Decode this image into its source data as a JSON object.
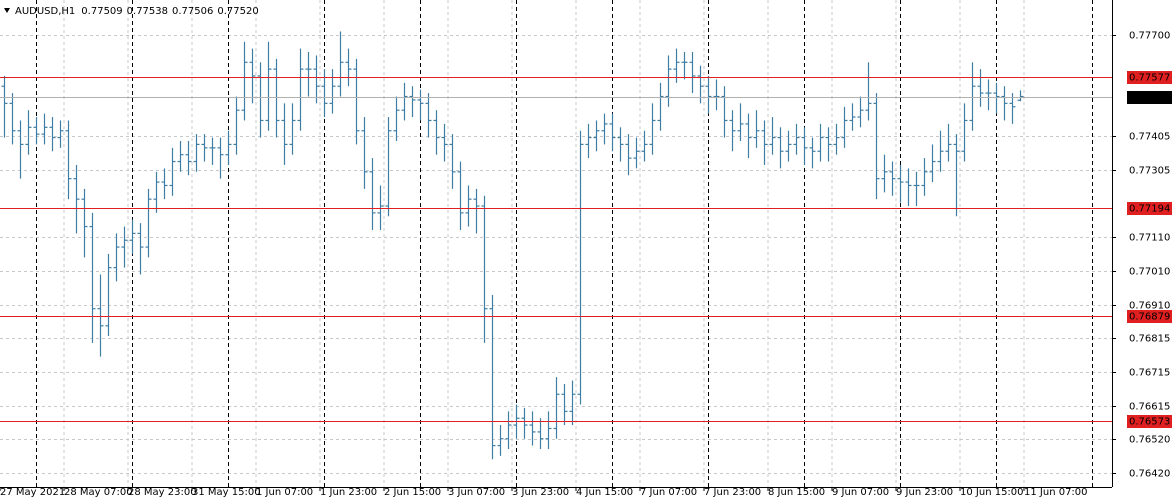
{
  "chart_data": {
    "type": "ohlc",
    "title": "AUDUSD,H1",
    "quote": [
      0.77509,
      0.77538,
      0.77506,
      {
        "value": 0.7752,
        "label": "0.77520"
      }
    ],
    "color": "#3f7ea3",
    "grid": true,
    "ylim": [
      0.76379,
      0.77802
    ],
    "yticks": [
      {
        "value": 0.777,
        "label": "0.77700"
      },
      {
        "value": 0.77405,
        "label": "0.77405"
      },
      {
        "value": 0.77305,
        "label": "0.77305"
      },
      {
        "value": 0.7711,
        "label": "0.77110"
      },
      {
        "value": 0.7701,
        "label": "0.77010"
      },
      {
        "value": 0.7691,
        "label": "0.76910"
      },
      {
        "value": 0.76815,
        "label": "0.76815"
      },
      {
        "value": 0.76715,
        "label": "0.76715"
      },
      {
        "value": 0.76615,
        "label": "0.76615"
      },
      {
        "value": 0.7652,
        "label": "0.76520"
      },
      {
        "value": 0.7642,
        "label": "0.76420"
      }
    ],
    "levels": [
      0.77577,
      0.77194,
      0.76879,
      0.76573
    ],
    "level_color": "#e02020",
    "current_price": {
      "value": 0.7752,
      "label": "0.77520"
    },
    "x_labels": [
      "27 May 2021",
      "28 May 07:00",
      "28 May 23:00",
      "31 May 15:00",
      "1 Jun 07:00",
      "1 Jun 23:00",
      "2 Jun 15:00",
      "3 Jun 07:00",
      "3 Jun 23:00",
      "4 Jun 15:00",
      "7 Jun 07:00",
      "7 Jun 23:00",
      "8 Jun 15:00",
      "9 Jun 07:00",
      "9 Jun 23:00",
      "10 Jun 15:00",
      "11 Jun 07:00"
    ],
    "ohlc": [
      [
        0.7755,
        0.7758,
        0.774,
        0.775
      ],
      [
        0.775,
        0.7753,
        0.7738,
        0.7742
      ],
      [
        0.7742,
        0.7745,
        0.7728,
        0.7738
      ],
      [
        0.7738,
        0.7748,
        0.7735,
        0.7743
      ],
      [
        0.7743,
        0.7746,
        0.7738,
        0.7741
      ],
      [
        0.7741,
        0.7747,
        0.7738,
        0.7743
      ],
      [
        0.7743,
        0.7746,
        0.7736,
        0.774
      ],
      [
        0.774,
        0.7745,
        0.7737,
        0.7742
      ],
      [
        0.7742,
        0.7745,
        0.7722,
        0.7728
      ],
      [
        0.7728,
        0.7732,
        0.7712,
        0.7722
      ],
      [
        0.7722,
        0.7725,
        0.7705,
        0.7714
      ],
      [
        0.7714,
        0.7718,
        0.768,
        0.769
      ],
      [
        0.769,
        0.77,
        0.7676,
        0.7685
      ],
      [
        0.7685,
        0.7706,
        0.7682,
        0.7702
      ],
      [
        0.7702,
        0.7712,
        0.7698,
        0.7708
      ],
      [
        0.7708,
        0.7714,
        0.7702,
        0.771
      ],
      [
        0.771,
        0.7716,
        0.7706,
        0.7712
      ],
      [
        0.7712,
        0.7715,
        0.77,
        0.7708
      ],
      [
        0.7708,
        0.7725,
        0.7705,
        0.7722
      ],
      [
        0.7722,
        0.773,
        0.7718,
        0.7727
      ],
      [
        0.7727,
        0.7731,
        0.7722,
        0.7726
      ],
      [
        0.7726,
        0.7737,
        0.7723,
        0.7733
      ],
      [
        0.7733,
        0.7739,
        0.773,
        0.7735
      ],
      [
        0.7735,
        0.7739,
        0.7729,
        0.7733
      ],
      [
        0.7733,
        0.7741,
        0.773,
        0.7738
      ],
      [
        0.7738,
        0.7741,
        0.7733,
        0.7737
      ],
      [
        0.7737,
        0.774,
        0.7732,
        0.7737
      ],
      [
        0.7737,
        0.774,
        0.7728,
        0.7735
      ],
      [
        0.7735,
        0.7742,
        0.7732,
        0.7738
      ],
      [
        0.7738,
        0.7752,
        0.7735,
        0.7748
      ],
      [
        0.7748,
        0.7768,
        0.7745,
        0.7762
      ],
      [
        0.7762,
        0.7766,
        0.775,
        0.7758
      ],
      [
        0.7758,
        0.7762,
        0.774,
        0.7745
      ],
      [
        0.7745,
        0.7768,
        0.7742,
        0.776
      ],
      [
        0.776,
        0.7763,
        0.774,
        0.7745
      ],
      [
        0.7745,
        0.775,
        0.7732,
        0.7738
      ],
      [
        0.7738,
        0.775,
        0.7735,
        0.7745
      ],
      [
        0.7745,
        0.7766,
        0.7742,
        0.776
      ],
      [
        0.776,
        0.7765,
        0.7752,
        0.776
      ],
      [
        0.776,
        0.7764,
        0.775,
        0.7755
      ],
      [
        0.7755,
        0.776,
        0.7746,
        0.775
      ],
      [
        0.775,
        0.776,
        0.7747,
        0.7755
      ],
      [
        0.7755,
        0.7771,
        0.7752,
        0.7762
      ],
      [
        0.7762,
        0.7766,
        0.7755,
        0.776
      ],
      [
        0.776,
        0.7763,
        0.7738,
        0.7742
      ],
      [
        0.7742,
        0.7746,
        0.7725,
        0.773
      ],
      [
        0.773,
        0.7734,
        0.7713,
        0.7718
      ],
      [
        0.7718,
        0.7726,
        0.7713,
        0.772
      ],
      [
        0.772,
        0.7746,
        0.7717,
        0.7742
      ],
      [
        0.7742,
        0.7752,
        0.7739,
        0.7748
      ],
      [
        0.7748,
        0.7756,
        0.7745,
        0.7752
      ],
      [
        0.7752,
        0.7755,
        0.7746,
        0.7751
      ],
      [
        0.7751,
        0.7754,
        0.7745,
        0.775
      ],
      [
        0.775,
        0.7753,
        0.774,
        0.7745
      ],
      [
        0.7745,
        0.7748,
        0.7735,
        0.774
      ],
      [
        0.774,
        0.7744,
        0.7733,
        0.7738
      ],
      [
        0.7738,
        0.7741,
        0.7725,
        0.773
      ],
      [
        0.773,
        0.7733,
        0.7713,
        0.7718
      ],
      [
        0.7718,
        0.7726,
        0.7714,
        0.7722
      ],
      [
        0.7722,
        0.7725,
        0.7712,
        0.772
      ],
      [
        0.772,
        0.7723,
        0.768,
        0.769
      ],
      [
        0.769,
        0.7694,
        0.7646,
        0.765
      ],
      [
        0.765,
        0.7656,
        0.7647,
        0.7652
      ],
      [
        0.7652,
        0.766,
        0.7649,
        0.7656
      ],
      [
        0.7656,
        0.7662,
        0.7652,
        0.7658
      ],
      [
        0.7658,
        0.7661,
        0.7652,
        0.7656
      ],
      [
        0.7656,
        0.766,
        0.765,
        0.7654
      ],
      [
        0.7654,
        0.7658,
        0.7649,
        0.7652
      ],
      [
        0.7652,
        0.766,
        0.7649,
        0.7655
      ],
      [
        0.7655,
        0.767,
        0.7652,
        0.7665
      ],
      [
        0.7665,
        0.7668,
        0.7656,
        0.766
      ],
      [
        0.766,
        0.7669,
        0.7656,
        0.7665
      ],
      [
        0.7665,
        0.7742,
        0.7662,
        0.7738
      ],
      [
        0.7738,
        0.7744,
        0.7734,
        0.774
      ],
      [
        0.774,
        0.7745,
        0.7736,
        0.7742
      ],
      [
        0.7742,
        0.7747,
        0.7738,
        0.7744
      ],
      [
        0.7744,
        0.7747,
        0.7736,
        0.774
      ],
      [
        0.774,
        0.7743,
        0.7733,
        0.7738
      ],
      [
        0.7738,
        0.7741,
        0.7729,
        0.7734
      ],
      [
        0.7734,
        0.774,
        0.7731,
        0.7736
      ],
      [
        0.7736,
        0.7742,
        0.7733,
        0.7738
      ],
      [
        0.7738,
        0.775,
        0.7735,
        0.7745
      ],
      [
        0.7745,
        0.7756,
        0.7742,
        0.7752
      ],
      [
        0.7752,
        0.7764,
        0.7749,
        0.776
      ],
      [
        0.776,
        0.7766,
        0.7756,
        0.7762
      ],
      [
        0.7762,
        0.7765,
        0.7757,
        0.7762
      ],
      [
        0.7762,
        0.7765,
        0.7753,
        0.7758
      ],
      [
        0.7758,
        0.7761,
        0.775,
        0.7755
      ],
      [
        0.7755,
        0.7758,
        0.7747,
        0.7752
      ],
      [
        0.7752,
        0.7757,
        0.7748,
        0.7752
      ],
      [
        0.7752,
        0.7755,
        0.774,
        0.7745
      ],
      [
        0.7745,
        0.7748,
        0.7736,
        0.7742
      ],
      [
        0.7742,
        0.775,
        0.7739,
        0.7744
      ],
      [
        0.7744,
        0.7747,
        0.7734,
        0.774
      ],
      [
        0.774,
        0.7748,
        0.7737,
        0.7742
      ],
      [
        0.7742,
        0.7745,
        0.7732,
        0.7738
      ],
      [
        0.7738,
        0.7746,
        0.7735,
        0.774
      ],
      [
        0.774,
        0.7743,
        0.7731,
        0.7736
      ],
      [
        0.7736,
        0.7742,
        0.7733,
        0.7738
      ],
      [
        0.7738,
        0.7744,
        0.7735,
        0.774
      ],
      [
        0.774,
        0.7743,
        0.7732,
        0.7737
      ],
      [
        0.7737,
        0.774,
        0.7731,
        0.7736
      ],
      [
        0.7736,
        0.7744,
        0.7733,
        0.774
      ],
      [
        0.774,
        0.7743,
        0.7733,
        0.7738
      ],
      [
        0.7738,
        0.7744,
        0.7735,
        0.774
      ],
      [
        0.774,
        0.7749,
        0.7737,
        0.7745
      ],
      [
        0.7745,
        0.775,
        0.7742,
        0.7746
      ],
      [
        0.7746,
        0.7752,
        0.7743,
        0.7748
      ],
      [
        0.7748,
        0.7762,
        0.7745,
        0.775
      ],
      [
        0.775,
        0.7753,
        0.7722,
        0.7728
      ],
      [
        0.7728,
        0.7735,
        0.7724,
        0.773
      ],
      [
        0.773,
        0.7733,
        0.7723,
        0.7728
      ],
      [
        0.7728,
        0.7732,
        0.7721,
        0.7727
      ],
      [
        0.7727,
        0.7731,
        0.772,
        0.7726
      ],
      [
        0.7726,
        0.773,
        0.772,
        0.7726
      ],
      [
        0.7726,
        0.7734,
        0.7723,
        0.773
      ],
      [
        0.773,
        0.7738,
        0.7727,
        0.7733
      ],
      [
        0.7733,
        0.7742,
        0.773,
        0.7736
      ],
      [
        0.7736,
        0.7744,
        0.7733,
        0.7738
      ],
      [
        0.7738,
        0.7741,
        0.7717,
        0.7736
      ],
      [
        0.7736,
        0.775,
        0.7733,
        0.7745
      ],
      [
        0.7745,
        0.7762,
        0.7742,
        0.7755
      ],
      [
        0.7755,
        0.776,
        0.7749,
        0.7753
      ],
      [
        0.7753,
        0.7757,
        0.7748,
        0.7753
      ],
      [
        0.7753,
        0.7756,
        0.7747,
        0.7752
      ],
      [
        0.7752,
        0.7755,
        0.7745,
        0.775
      ],
      [
        0.775,
        0.7753,
        0.7744,
        0.7749
      ],
      [
        0.77509,
        0.77538,
        0.77506,
        0.7752
      ]
    ]
  }
}
